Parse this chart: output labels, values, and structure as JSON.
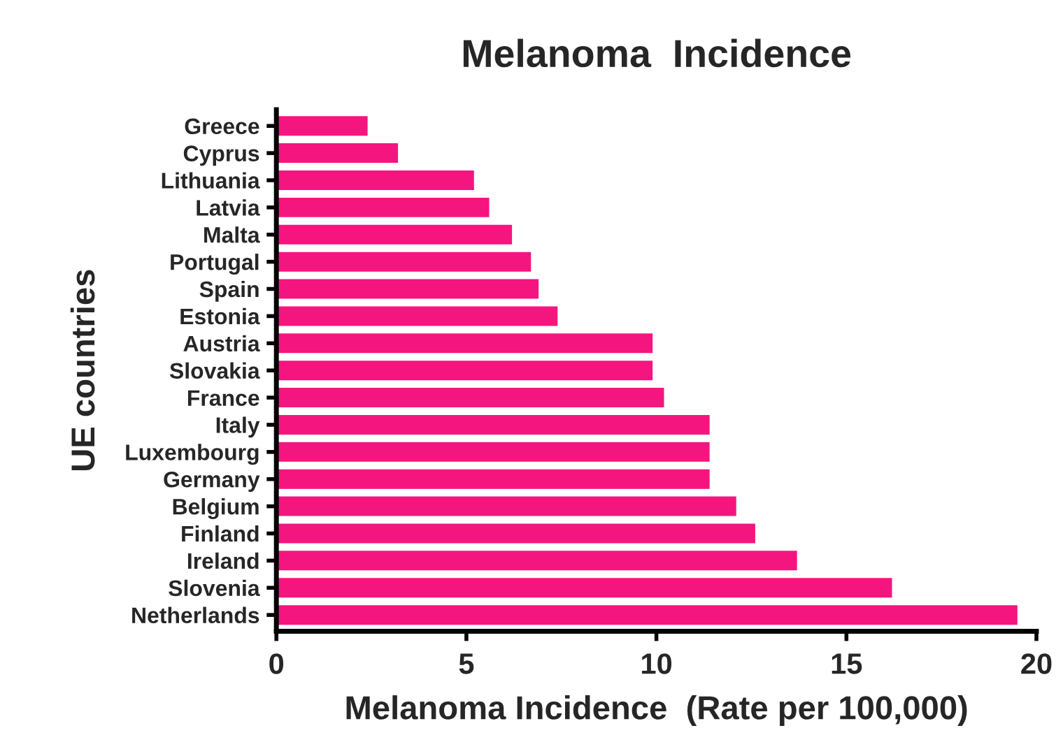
{
  "chart_data": {
    "type": "bar",
    "orientation": "horizontal",
    "title": "Melanoma  Incidence",
    "xlabel": "Melanoma Incidence  (Rate per 100,000)",
    "ylabel": "UE countries",
    "categories": [
      "Greece",
      "Cyprus",
      "Lithuania",
      "Latvia",
      "Malta",
      "Portugal",
      "Spain",
      "Estonia",
      "Austria",
      "Slovakia",
      "France",
      "Italy",
      "Luxembourg",
      "Germany",
      "Belgium",
      "Finland",
      "Ireland",
      "Slovenia",
      "Netherlands"
    ],
    "values": [
      2.4,
      3.2,
      5.2,
      5.6,
      6.2,
      6.7,
      6.9,
      7.4,
      9.9,
      9.9,
      10.2,
      11.4,
      11.4,
      11.4,
      12.1,
      12.6,
      13.7,
      16.2,
      19.5
    ],
    "color": "#f5157f",
    "xlim": [
      0,
      20
    ],
    "xticks": [
      0,
      5,
      10,
      15,
      20
    ],
    "grid": false,
    "legend": false
  }
}
